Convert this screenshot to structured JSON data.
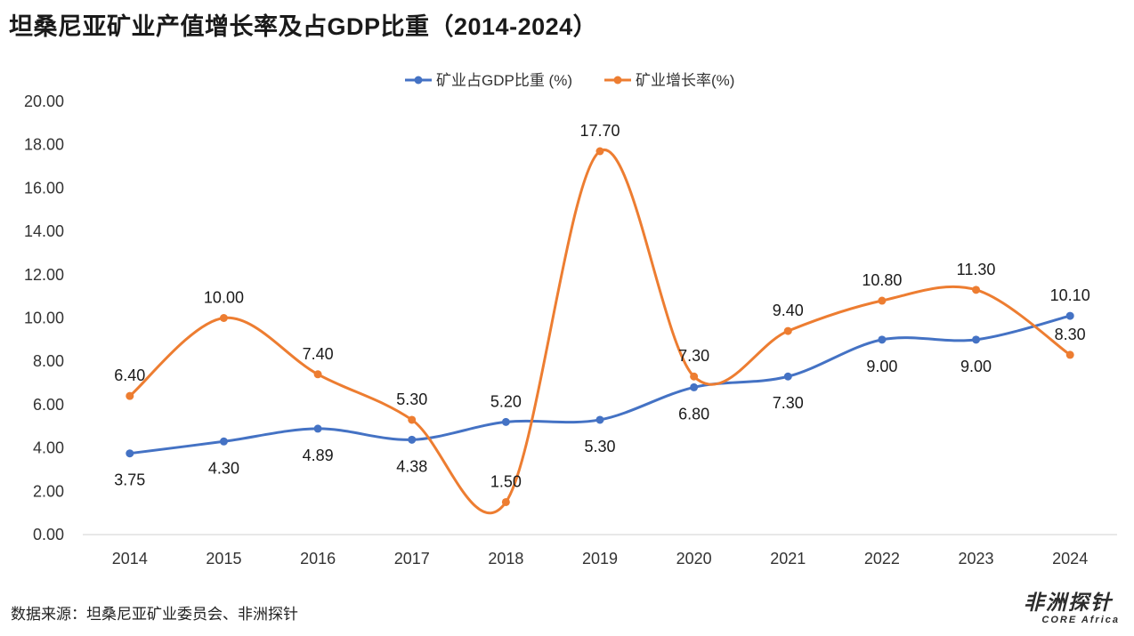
{
  "title": "坦桑尼亚矿业产值增长率及占GDP比重（2014-2024）",
  "source": "数据来源：坦桑尼亚矿业委员会、非洲探针",
  "logo": {
    "main": "非洲探针",
    "sub": "CORE Africa"
  },
  "chart_data": {
    "type": "line",
    "categories": [
      "2014",
      "2015",
      "2016",
      "2017",
      "2018",
      "2019",
      "2020",
      "2021",
      "2022",
      "2023",
      "2024"
    ],
    "ylim": [
      0,
      20
    ],
    "yticks": [
      "0.00",
      "2.00",
      "4.00",
      "6.00",
      "8.00",
      "10.00",
      "12.00",
      "14.00",
      "16.00",
      "18.00",
      "20.00"
    ],
    "legend_position": "top-center",
    "grid": false,
    "series": [
      {
        "name": "矿业占GDP比重 (%)",
        "color": "#4472C4",
        "values": [
          3.75,
          4.3,
          4.89,
          4.38,
          5.2,
          5.3,
          6.8,
          7.3,
          9.0,
          9.0,
          10.1
        ],
        "labels": [
          "3.75",
          "4.30",
          "4.89",
          "4.38",
          "5.20",
          "5.30",
          "6.80",
          "7.30",
          "9.00",
          "9.00",
          "10.10"
        ],
        "label_side": [
          "below",
          "below",
          "below",
          "below",
          "above",
          "below",
          "below",
          "below",
          "below",
          "below",
          "above"
        ]
      },
      {
        "name": "矿业增长率(%)",
        "color": "#ED7D31",
        "values": [
          6.4,
          10.0,
          7.4,
          5.3,
          1.5,
          17.7,
          7.3,
          9.4,
          10.8,
          11.3,
          8.3
        ],
        "labels": [
          "6.40",
          "10.00",
          "7.40",
          "5.30",
          "1.50",
          "17.70",
          "7.30",
          "9.40",
          "10.80",
          "11.30",
          "8.30"
        ],
        "label_side": [
          "above",
          "above",
          "above",
          "above",
          "above",
          "above",
          "above",
          "above",
          "above",
          "above",
          "above"
        ]
      }
    ]
  }
}
